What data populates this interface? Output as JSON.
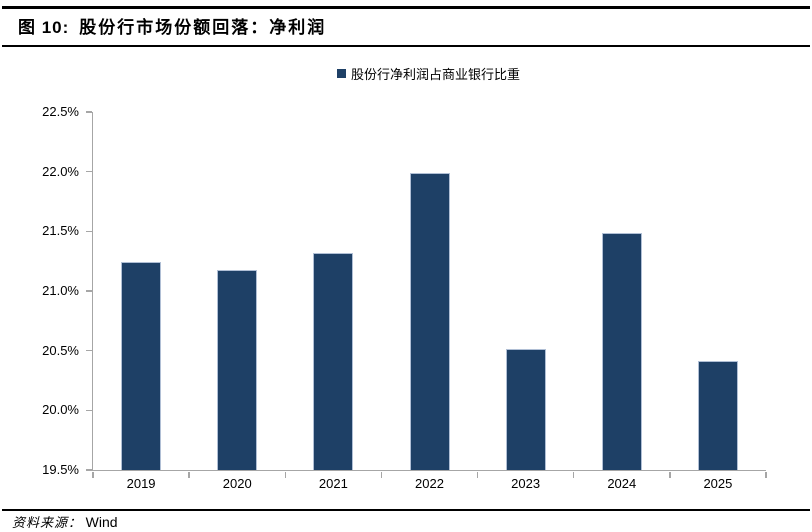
{
  "header": {
    "figure_label": "图 10:",
    "title": "股份行市场份额回落：净利润"
  },
  "legend": {
    "label": "股份行净利润占商业银行比重"
  },
  "chart_data": {
    "type": "bar",
    "title": "股份行市场份额回落：净利润",
    "categories": [
      "2019",
      "2020",
      "2021",
      "2022",
      "2023",
      "2024",
      "2025"
    ],
    "series": [
      {
        "name": "股份行净利润占商业银行比重",
        "values": [
          21.24,
          21.18,
          21.32,
          21.99,
          20.51,
          21.49,
          20.41
        ]
      }
    ],
    "xlabel": "",
    "ylabel": "",
    "ylim": [
      19.5,
      22.5
    ],
    "ytick_step": 0.5,
    "ytick_labels": [
      "19.5%",
      "20.0%",
      "20.5%",
      "21.0%",
      "21.5%",
      "22.0%",
      "22.5%"
    ],
    "grid": false,
    "legend_position": "top-center",
    "bar_color": "#1e4066",
    "bar_border_color": "#b0bfd5",
    "axis_color": "#a6a6a6"
  },
  "footer": {
    "source_label": "资料来源：",
    "source_value": "Wind"
  }
}
